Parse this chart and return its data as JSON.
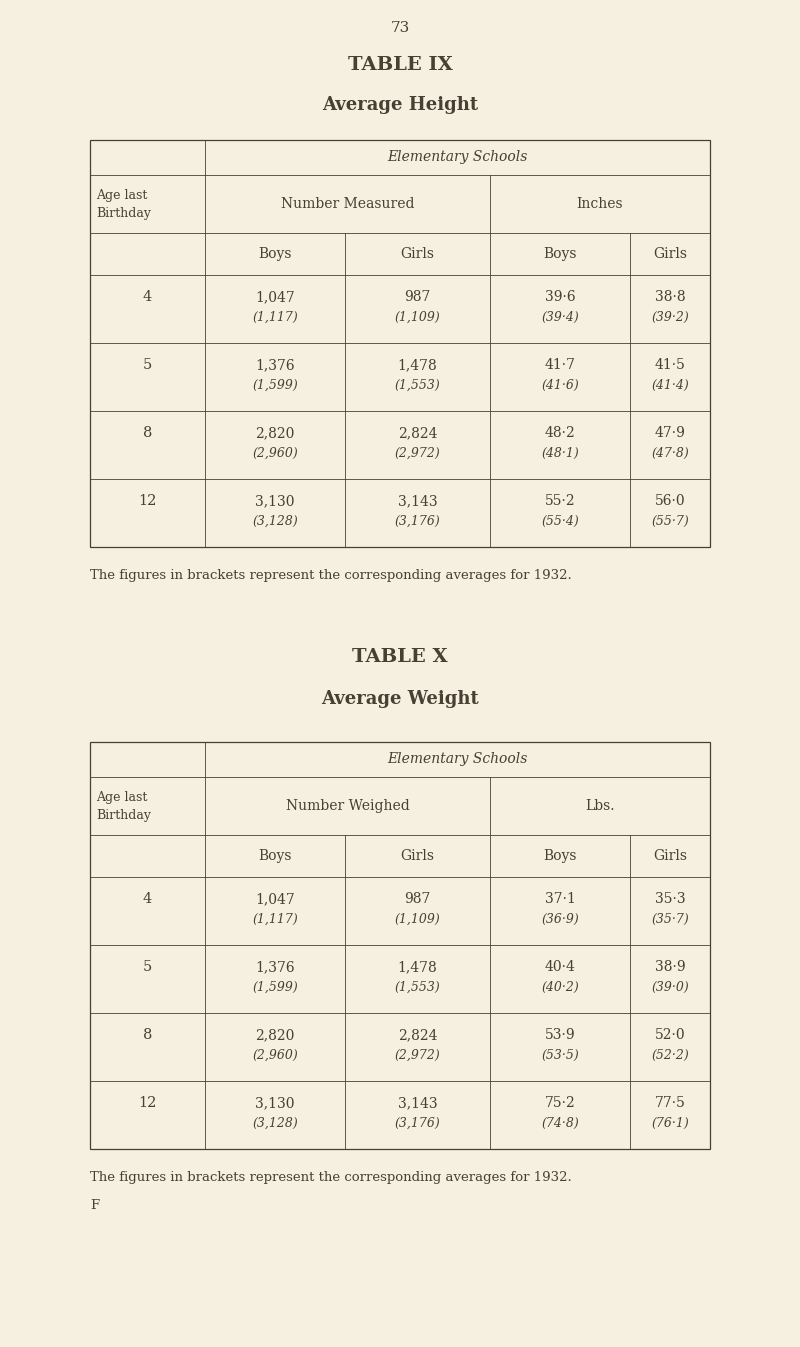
{
  "bg_color": "#f5f0e0",
  "text_color": "#4a3f35",
  "page_number": "73",
  "table_ix": {
    "title": "TABLE IX",
    "subtitle": "Average Height",
    "group_header": "Elementary Schools",
    "col2_header": "Number Measured",
    "col3_header": "Inches",
    "rows": [
      {
        "age": "4",
        "nb": "1,047",
        "nb2": "(1,117)",
        "ng": "987",
        "ng2": "(1,109)",
        "ib": "39·6",
        "ib2": "(39·4)",
        "ig": "38·8",
        "ig2": "(39·2)"
      },
      {
        "age": "5",
        "nb": "1,376",
        "nb2": "(1,599)",
        "ng": "1,478",
        "ng2": "(1,553)",
        "ib": "41·7",
        "ib2": "(41·6)",
        "ig": "41·5",
        "ig2": "(41·4)"
      },
      {
        "age": "8",
        "nb": "2,820",
        "nb2": "(2,960)",
        "ng": "2,824",
        "ng2": "(2,972)",
        "ib": "48·2",
        "ib2": "(48·1)",
        "ig": "47·9",
        "ig2": "(47·8)"
      },
      {
        "age": "12",
        "nb": "3,130",
        "nb2": "(3,128)",
        "ng": "3,143",
        "ng2": "(3,176)",
        "ib": "55·2",
        "ib2": "(55·4)",
        "ig": "56·0",
        "ig2": "(55·7)"
      }
    ],
    "footnote": "The figures in brackets represent the corresponding averages for 1932."
  },
  "table_x": {
    "title": "TABLE X",
    "subtitle": "Average Weight",
    "group_header": "Elementary Schools",
    "col2_header": "Number Weighed",
    "col3_header": "Lbs.",
    "rows": [
      {
        "age": "4",
        "nb": "1,047",
        "nb2": "(1,117)",
        "ng": "987",
        "ng2": "(1,109)",
        "ib": "37·1",
        "ib2": "(36·9)",
        "ig": "35·3",
        "ig2": "(35·7)"
      },
      {
        "age": "5",
        "nb": "1,376",
        "nb2": "(1,599)",
        "ng": "1,478",
        "ng2": "(1,553)",
        "ib": "40·4",
        "ib2": "(40·2)",
        "ig": "38·9",
        "ig2": "(39·0)"
      },
      {
        "age": "8",
        "nb": "2,820",
        "nb2": "(2,960)",
        "ng": "2,824",
        "ng2": "(2,972)",
        "ib": "53·9",
        "ib2": "(53·5)",
        "ig": "52·0",
        "ig2": "(52·2)"
      },
      {
        "age": "12",
        "nb": "3,130",
        "nb2": "(3,128)",
        "ng": "3,143",
        "ng2": "(3,176)",
        "ib": "75·2",
        "ib2": "(74·8)",
        "ig": "77·5",
        "ig2": "(76·1)"
      }
    ],
    "footnote": "The figures in brackets represent the corresponding averages for 1932.",
    "footnote2": "F"
  }
}
